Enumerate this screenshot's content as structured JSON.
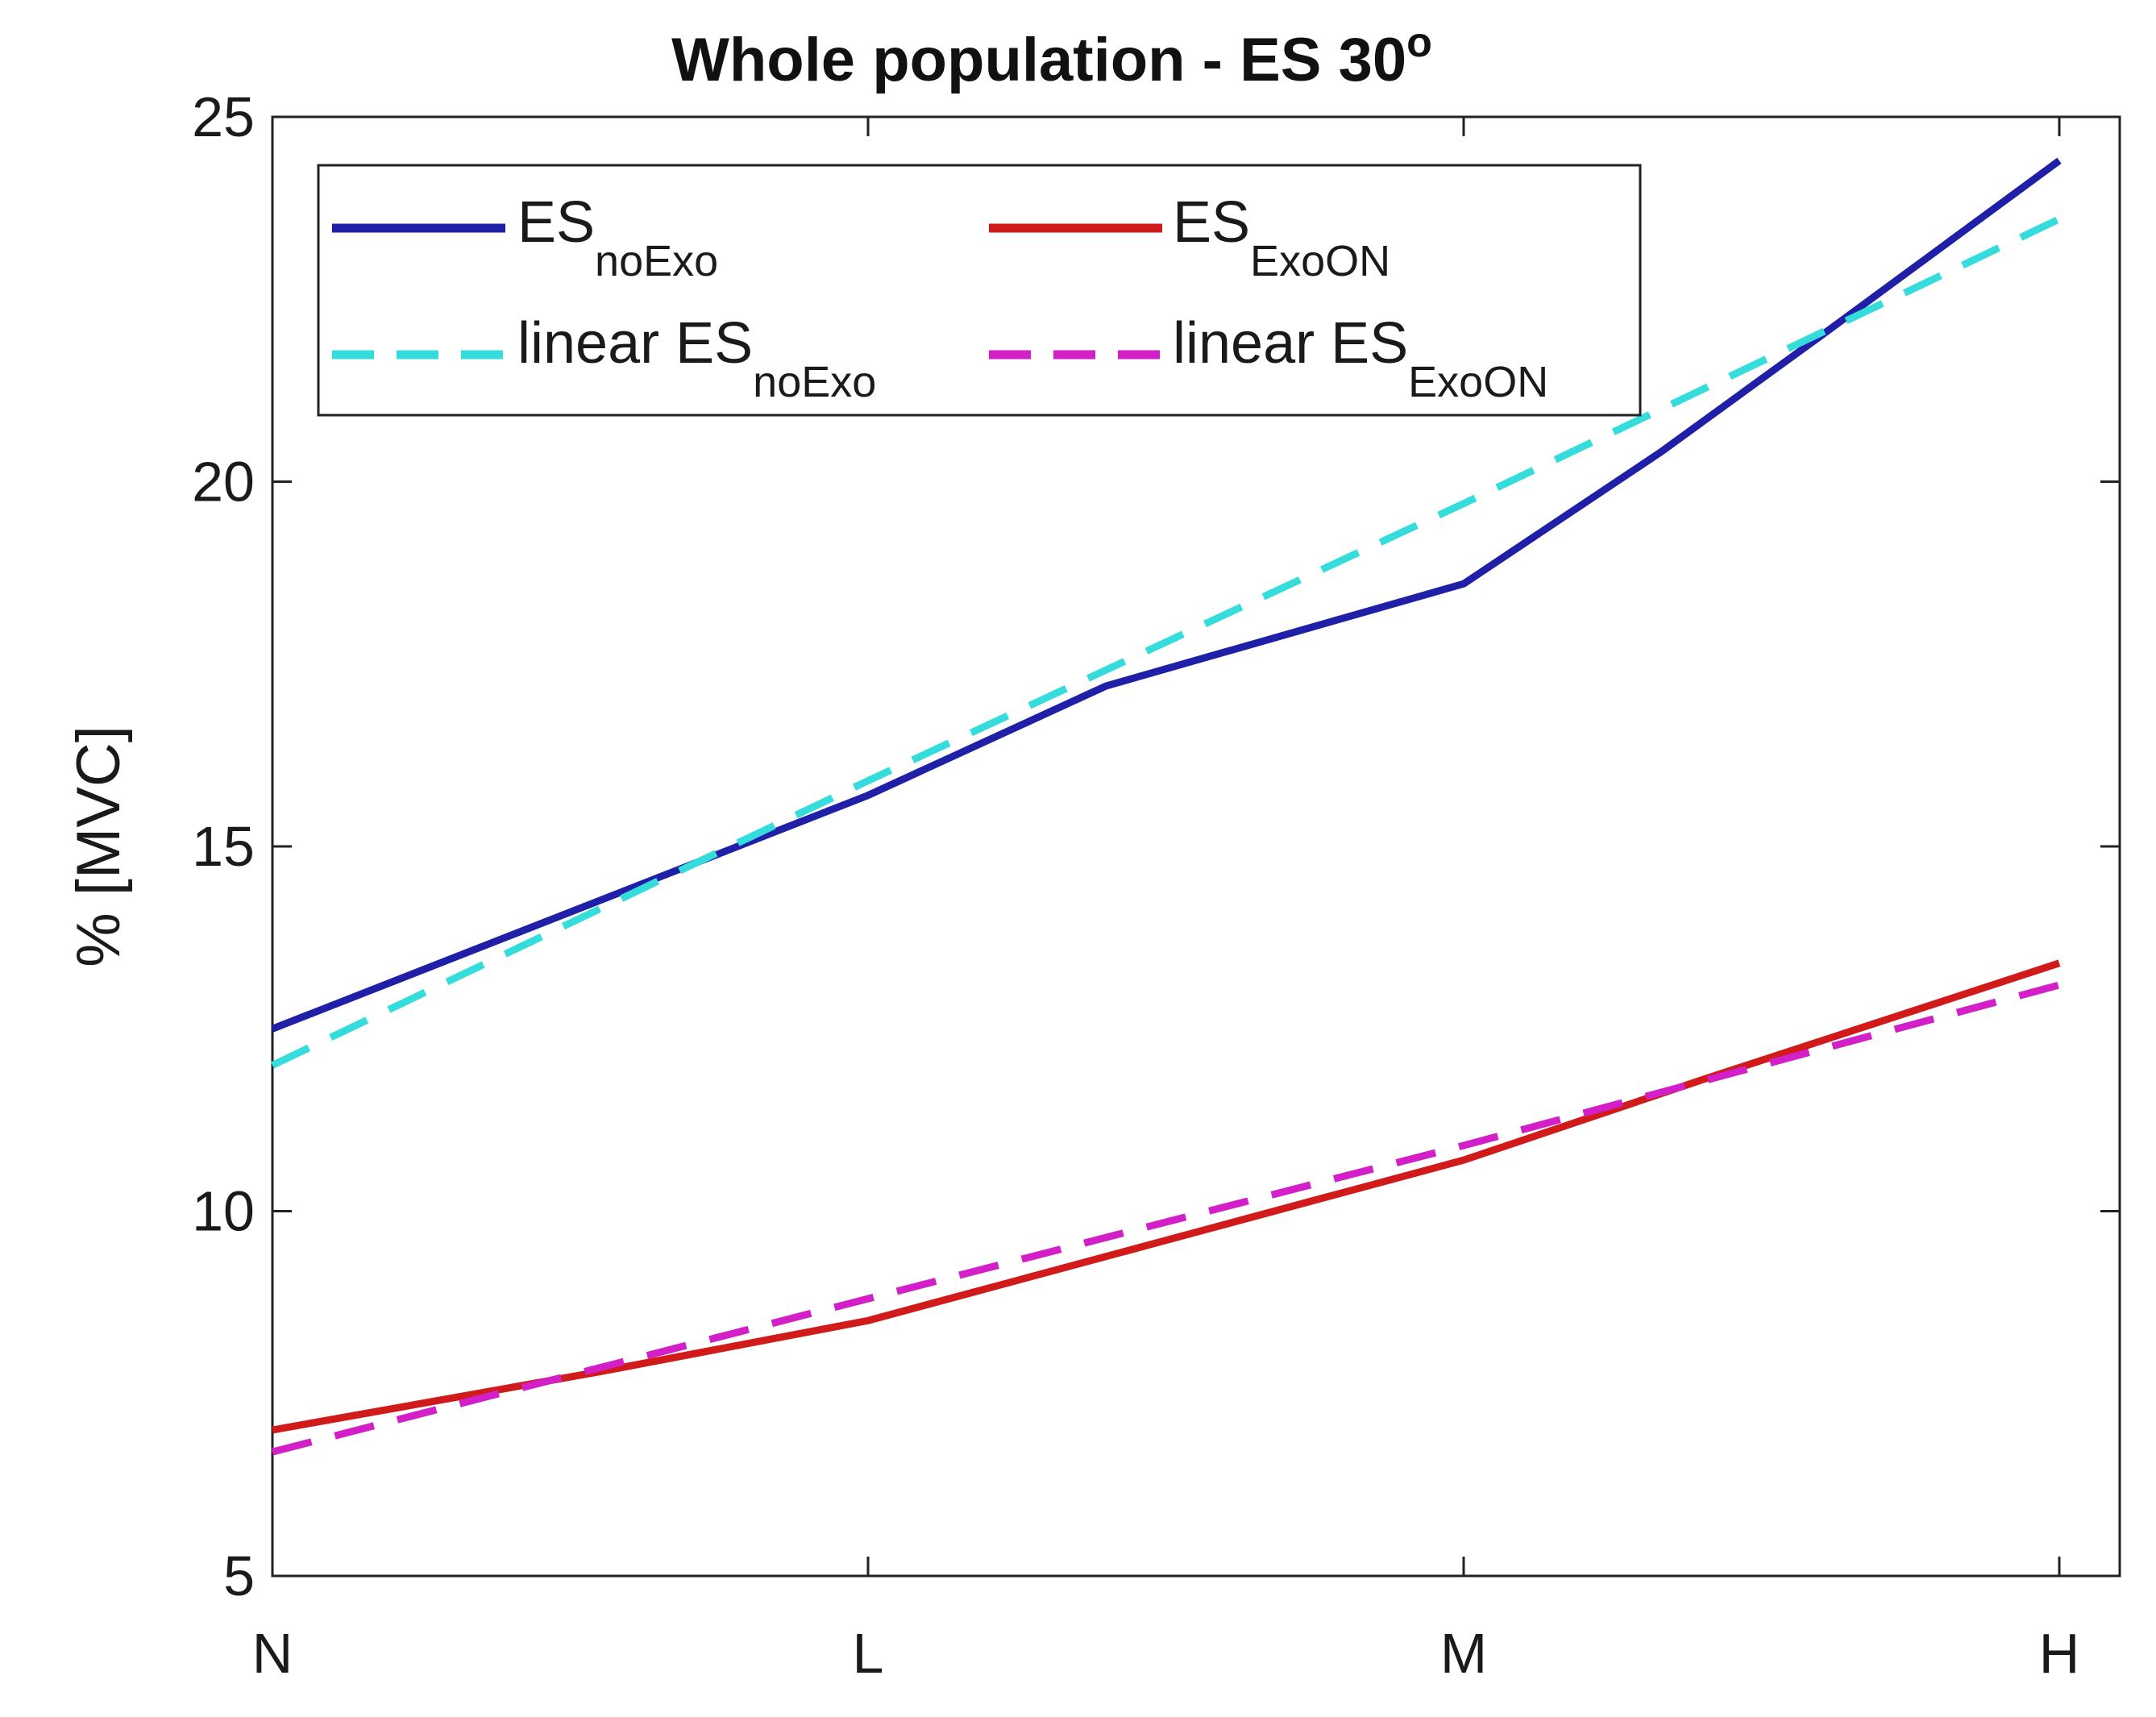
{
  "chart_data": {
    "type": "line",
    "title": "Whole population - ES 30",
    "title_superscript": "o",
    "xlabel": "",
    "ylabel": "% [MVC]",
    "categories": [
      "N",
      "L",
      "M",
      "H"
    ],
    "ylim": [
      5,
      25
    ],
    "yticks": [
      5,
      10,
      15,
      20,
      25
    ],
    "grid": false,
    "legend_position": "top-left",
    "series": [
      {
        "name": "ES noExo",
        "legend_main": "ES",
        "legend_sub": "noExo",
        "style": "solid",
        "color": "#1f1fa8",
        "x": [
          0,
          1,
          1.4,
          2,
          2.33,
          2.6,
          3
        ],
        "values": [
          12.5,
          15.7,
          17.2,
          18.6,
          20.4,
          22.0,
          24.4
        ]
      },
      {
        "name": "ES ExoON",
        "legend_main": "ES",
        "legend_sub": "ExoON",
        "style": "solid",
        "color": "#d11a1a",
        "x": [
          0,
          0.55,
          1,
          1.5,
          2,
          2.4,
          3
        ],
        "values": [
          7.0,
          7.8,
          8.5,
          9.6,
          10.7,
          11.8,
          13.4
        ]
      },
      {
        "name": "linear ES noExo",
        "legend_main": "linear ES",
        "legend_sub": "noExo",
        "style": "dashed",
        "color": "#35dcdc",
        "x": [
          0,
          1,
          2,
          3
        ],
        "values": [
          12.0,
          15.9,
          19.7,
          23.6
        ]
      },
      {
        "name": "linear ES ExoON",
        "legend_main": "linear ES",
        "legend_sub": "ExoON",
        "style": "dashed",
        "color": "#d21fc8",
        "x": [
          0,
          1,
          2,
          3
        ],
        "values": [
          6.7,
          8.8,
          10.9,
          13.1
        ]
      }
    ]
  }
}
